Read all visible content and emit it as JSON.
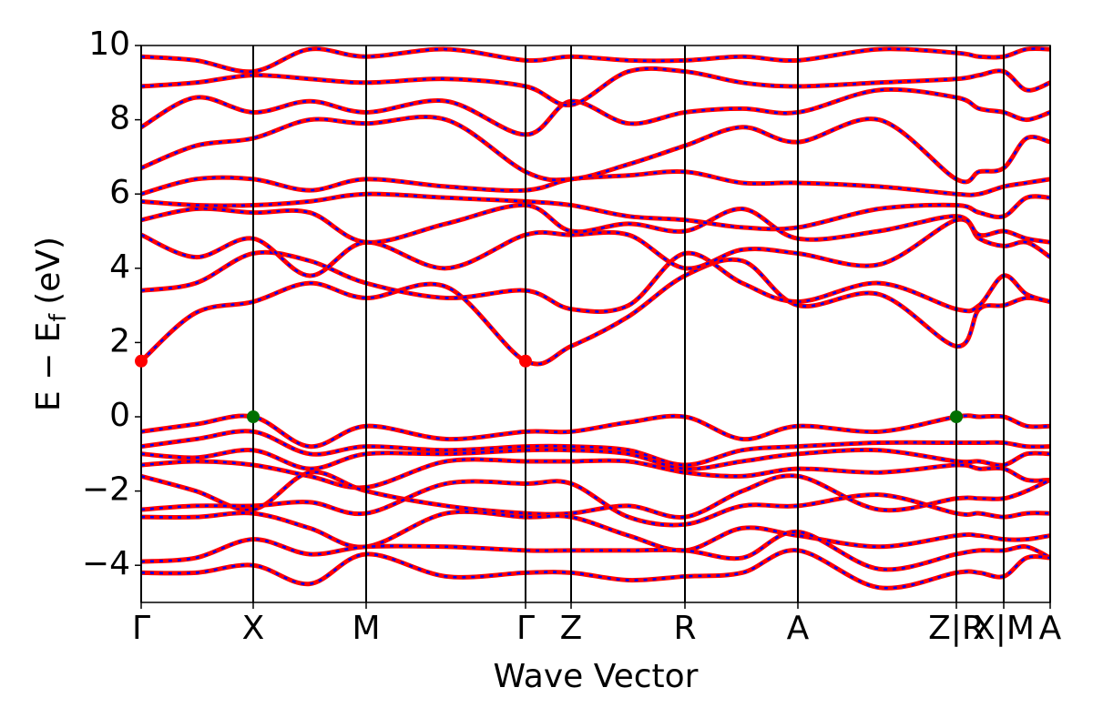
{
  "chart_data": {
    "type": "line",
    "xlabel": "Wave Vector",
    "ylabel": {
      "main": "E − E",
      "sub": "f",
      "unit": "(eV)"
    },
    "xlim": [
      0,
      9.98
    ],
    "ylim": [
      -5,
      10
    ],
    "xticks": [
      {
        "value": 0,
        "label": "Γ"
      },
      {
        "value": 1.23,
        "label": "X"
      },
      {
        "value": 2.47,
        "label": "M"
      },
      {
        "value": 4.22,
        "label": "Γ"
      },
      {
        "value": 4.72,
        "label": "Z"
      },
      {
        "value": 5.97,
        "label": "R"
      },
      {
        "value": 7.21,
        "label": "A"
      },
      {
        "value": 8.95,
        "label": "Z|R"
      },
      {
        "value": 9.47,
        "label": "X|M"
      },
      {
        "value": 9.98,
        "label": "A"
      }
    ],
    "yticks": [
      {
        "value": -4,
        "label": "−4"
      },
      {
        "value": -2,
        "label": "−2"
      },
      0,
      2,
      4,
      6,
      8,
      10
    ],
    "line_color": "#ff0000",
    "dash_color": "#0000ff",
    "x": [
      0,
      0.6,
      1.23,
      1.85,
      2.47,
      3.35,
      4.22,
      4.72,
      5.35,
      5.97,
      6.6,
      7.21,
      8.1,
      8.95,
      9.2,
      9.47,
      9.72,
      9.98
    ],
    "series": [
      {
        "values": [
          -0.4,
          -0.2,
          0,
          -0.8,
          -0.25,
          -0.6,
          -0.4,
          -0.4,
          -0.15,
          0,
          -0.6,
          -0.25,
          -0.4,
          0,
          0,
          0,
          -0.25,
          -0.25
        ]
      },
      {
        "values": [
          -0.8,
          -0.6,
          -0.4,
          -1.0,
          -0.8,
          -0.9,
          -0.8,
          -0.8,
          -0.9,
          -1.3,
          -0.9,
          -0.8,
          -0.7,
          -0.7,
          -0.7,
          -0.7,
          -0.8,
          -0.8
        ]
      },
      {
        "values": [
          -1.0,
          -1.1,
          -0.9,
          -1.4,
          -1.0,
          -1.0,
          -0.9,
          -0.9,
          -1.0,
          -1.4,
          -1.2,
          -1.0,
          -0.9,
          -1.2,
          -1.2,
          -1.3,
          -1.0,
          -1.0
        ]
      },
      {
        "values": [
          -1.3,
          -1.2,
          -1.3,
          -1.6,
          -1.9,
          -1.2,
          -1.2,
          -1.2,
          -1.2,
          -1.5,
          -1.6,
          -1.4,
          -1.5,
          -1.3,
          -1.4,
          -1.4,
          -1.7,
          -1.7
        ]
      },
      {
        "values": [
          -1.6,
          -2.0,
          -2.5,
          -1.5,
          -2.0,
          -2.4,
          -2.6,
          -2.6,
          -2.4,
          -2.7,
          -2.0,
          -1.6,
          -2.5,
          -2.2,
          -2.2,
          -2.2,
          -2.0,
          -1.7
        ]
      },
      {
        "values": [
          -2.5,
          -2.4,
          -2.4,
          -2.3,
          -2.6,
          -1.8,
          -1.8,
          -1.8,
          -2.7,
          -2.9,
          -2.4,
          -2.4,
          -2.1,
          -2.6,
          -2.6,
          -2.7,
          -2.6,
          -2.6
        ]
      },
      {
        "values": [
          -2.7,
          -2.7,
          -2.6,
          -3.0,
          -3.5,
          -2.6,
          -2.7,
          -2.7,
          -3.2,
          -3.6,
          -3.0,
          -3.2,
          -3.5,
          -3.2,
          -3.2,
          -3.3,
          -3.3,
          -3.2
        ]
      },
      {
        "values": [
          -3.9,
          -3.8,
          -3.3,
          -3.7,
          -3.5,
          -3.5,
          -3.6,
          -3.6,
          -3.6,
          -3.6,
          -3.8,
          -3.1,
          -4.1,
          -3.7,
          -3.6,
          -3.6,
          -3.5,
          -3.8
        ]
      },
      {
        "values": [
          -4.2,
          -4.2,
          -4.0,
          -4.5,
          -3.7,
          -4.3,
          -4.2,
          -4.2,
          -4.4,
          -4.3,
          -4.2,
          -3.6,
          -4.6,
          -4.2,
          -4.2,
          -4.3,
          -3.8,
          -3.8
        ]
      },
      {
        "values": [
          1.5,
          2.8,
          3.1,
          3.6,
          3.2,
          3.5,
          1.5,
          1.9,
          2.7,
          3.8,
          4.2,
          3.0,
          3.3,
          1.9,
          2.9,
          3.0,
          3.2,
          3.1
        ]
      },
      {
        "values": [
          3.4,
          3.6,
          4.4,
          4.2,
          3.6,
          3.2,
          3.4,
          2.9,
          3.0,
          4.4,
          3.6,
          3.1,
          3.6,
          2.9,
          3.0,
          3.8,
          3.3,
          3.1
        ]
      },
      {
        "values": [
          4.9,
          4.3,
          4.8,
          3.8,
          4.7,
          4.0,
          4.9,
          4.9,
          4.9,
          4.0,
          4.5,
          4.4,
          4.1,
          5.3,
          4.8,
          4.6,
          4.7,
          4.3
        ]
      },
      {
        "values": [
          5.3,
          5.6,
          5.5,
          5.5,
          4.7,
          5.2,
          5.7,
          5.0,
          5.2,
          5.0,
          5.6,
          4.8,
          5.0,
          5.4,
          4.9,
          5.0,
          4.8,
          4.7
        ]
      },
      {
        "values": [
          5.8,
          5.7,
          5.7,
          5.8,
          6.0,
          5.9,
          5.8,
          5.7,
          5.4,
          5.3,
          5.1,
          5.1,
          5.6,
          5.7,
          5.5,
          5.4,
          5.9,
          5.9
        ]
      },
      {
        "values": [
          6.0,
          6.4,
          6.4,
          6.1,
          6.4,
          6.2,
          6.1,
          6.4,
          6.5,
          6.6,
          6.3,
          6.3,
          6.2,
          6.0,
          6.0,
          6.2,
          6.3,
          6.4
        ]
      },
      {
        "values": [
          6.7,
          7.3,
          7.5,
          8.0,
          7.9,
          8.0,
          6.6,
          6.4,
          6.8,
          7.3,
          7.8,
          7.4,
          8.0,
          6.4,
          6.6,
          6.7,
          7.5,
          7.4
        ]
      },
      {
        "values": [
          7.8,
          8.6,
          8.2,
          8.5,
          8.2,
          8.5,
          7.6,
          8.5,
          7.9,
          8.2,
          8.3,
          8.2,
          8.8,
          8.6,
          8.3,
          8.2,
          8.0,
          8.2
        ]
      },
      {
        "values": [
          8.9,
          9.0,
          9.2,
          9.1,
          9.0,
          9.1,
          8.9,
          8.4,
          9.3,
          9.3,
          9.0,
          8.9,
          9.0,
          9.1,
          9.2,
          9.3,
          8.8,
          9.0
        ]
      },
      {
        "values": [
          9.7,
          9.6,
          9.3,
          9.9,
          9.7,
          9.9,
          9.6,
          9.7,
          9.6,
          9.6,
          9.7,
          9.6,
          9.9,
          9.8,
          9.7,
          9.7,
          9.9,
          9.9
        ]
      }
    ],
    "points": [
      {
        "x": 1.23,
        "y": 0,
        "color": "#007000"
      },
      {
        "x": 8.95,
        "y": 0,
        "color": "#007000"
      },
      {
        "x": 0,
        "y": 1.5,
        "color": "#ff0000"
      },
      {
        "x": 4.22,
        "y": 1.5,
        "color": "#ff0000"
      }
    ]
  }
}
